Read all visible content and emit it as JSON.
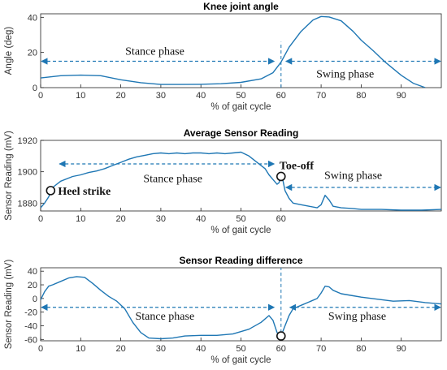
{
  "colors": {
    "series": "#1f77b4",
    "axis": "#222222",
    "text": "#111111"
  },
  "chart_data": [
    {
      "type": "line",
      "title": "Knee joint angle",
      "xlabel": "% of gait cycle",
      "ylabel": "Angle (deg)",
      "xlim": [
        0,
        100
      ],
      "ylim": [
        0,
        42
      ],
      "xticks": [
        0,
        10,
        20,
        30,
        40,
        50,
        60,
        70,
        80,
        90
      ],
      "yticks": [
        0,
        20,
        40
      ],
      "series": [
        {
          "x": [
            0,
            5,
            10,
            15,
            20,
            25,
            30,
            35,
            40,
            45,
            50,
            55,
            58,
            60,
            62,
            65,
            68,
            70,
            72,
            75,
            78,
            80,
            83,
            86,
            90,
            93,
            96
          ],
          "y": [
            5.5,
            6.8,
            7.1,
            6.8,
            4.5,
            2.8,
            1.8,
            1.8,
            1.9,
            2.2,
            3.0,
            5.0,
            8.5,
            14.5,
            23,
            32,
            38.5,
            40.5,
            40.2,
            38,
            32,
            27,
            21,
            14.5,
            7,
            2.5,
            0
          ]
        }
      ],
      "annotations": [
        {
          "type": "vline",
          "x": 60,
          "y1": 0,
          "y2": 26
        },
        {
          "type": "double-arrow",
          "x1": 0,
          "x2": 58.5,
          "y": 15,
          "label": "Stance phase",
          "label_x": 28.5,
          "label_y": 21
        },
        {
          "type": "double-arrow",
          "x1": 61,
          "x2": 100,
          "y": 15,
          "label": "Swing phase",
          "label_x": 76,
          "label_y": 8
        }
      ]
    },
    {
      "type": "line",
      "title": "Average Sensor Reading",
      "xlabel": "% of gait cycle",
      "ylabel": "Sensor Reading (mV)",
      "xlim": [
        0,
        100
      ],
      "ylim": [
        1875,
        1920
      ],
      "xticks": [
        0,
        10,
        20,
        30,
        40,
        50,
        60
      ],
      "yticks": [
        1880,
        1900,
        1920
      ],
      "series": [
        {
          "x": [
            0,
            1,
            2,
            3,
            5,
            8,
            10,
            12,
            14,
            16,
            18,
            20,
            22,
            24,
            26,
            28,
            30,
            32,
            34,
            36,
            38,
            40,
            42,
            44,
            46,
            48,
            50,
            52,
            54,
            56,
            57,
            58,
            59,
            59.5,
            60,
            60.5,
            61,
            62,
            63,
            65,
            67,
            69,
            70,
            71,
            72,
            73,
            75,
            78,
            80,
            85,
            90,
            95,
            100
          ],
          "y": [
            1877,
            1880,
            1884,
            1890,
            1894,
            1897,
            1898,
            1899.5,
            1900.5,
            1902,
            1904,
            1906,
            1908,
            1909.5,
            1910.5,
            1911.5,
            1912,
            1911.5,
            1912,
            1911.5,
            1912,
            1912,
            1911.5,
            1912,
            1911.5,
            1912,
            1912.5,
            1910,
            1906,
            1902,
            1898,
            1895,
            1892,
            1893,
            1897,
            1894,
            1888,
            1883,
            1880,
            1879,
            1878,
            1877,
            1879,
            1885,
            1882,
            1878,
            1877,
            1876.5,
            1876,
            1876,
            1875.5,
            1875.5,
            1876
          ]
        }
      ],
      "markers": [
        {
          "x": 2.5,
          "y": 1888,
          "label": "Heel strike"
        },
        {
          "x": 60,
          "y": 1897,
          "label": "Toe-off"
        }
      ],
      "annotations": [
        {
          "type": "double-arrow",
          "x1": 4.5,
          "x2": 58.5,
          "y": 1905,
          "label": "Stance phase",
          "label_x": 33,
          "label_y": 1896
        },
        {
          "type": "double-arrow",
          "x1": 61,
          "x2": 100,
          "y": 1890,
          "label": "Swing phase",
          "label_x": 78,
          "label_y": 1898
        }
      ]
    },
    {
      "type": "line",
      "title": "Sensor Reading difference",
      "xlabel": "% of gait cycle",
      "ylabel": "Sensor Reading (mV)",
      "xlim": [
        0,
        100
      ],
      "ylim": [
        -62,
        45
      ],
      "xticks": [
        0,
        10,
        20,
        30,
        40,
        50,
        60,
        70,
        80,
        90
      ],
      "yticks": [
        -60,
        -40,
        -20,
        0,
        20,
        40
      ],
      "series": [
        {
          "x": [
            0,
            1,
            2,
            3,
            5,
            7,
            9,
            11,
            13,
            15,
            17,
            19,
            21,
            23,
            25,
            27,
            30,
            33,
            36,
            40,
            44,
            48,
            52,
            55,
            57,
            58,
            59,
            60,
            61,
            62,
            63,
            65,
            67,
            69,
            70,
            71,
            72,
            73,
            75,
            78,
            80,
            84,
            88,
            92,
            96,
            100
          ],
          "y": [
            -2,
            10,
            18,
            20,
            25,
            30,
            32,
            31,
            22,
            12,
            3,
            -4,
            -15,
            -35,
            -50,
            -58,
            -59,
            -58,
            -55,
            -54,
            -54,
            -52,
            -45,
            -35,
            -25,
            -32,
            -50,
            -55,
            -40,
            -25,
            -15,
            -10,
            -5,
            0,
            8,
            18,
            17,
            12,
            7,
            4,
            2,
            -1,
            -4,
            -3,
            -6,
            -8
          ]
        }
      ],
      "markers": [
        {
          "x": 60,
          "y": -55,
          "label": ""
        }
      ],
      "annotations": [
        {
          "type": "vline",
          "x": 60,
          "y1": -50,
          "y2": 45
        },
        {
          "type": "double-arrow",
          "x1": 0,
          "x2": 58.5,
          "y": -13,
          "label": "Stance phase",
          "label_x": 31,
          "label_y": -25
        },
        {
          "type": "double-arrow",
          "x1": 62,
          "x2": 100,
          "y": -13,
          "label": "Swing phase",
          "label_x": 79,
          "label_y": -25
        }
      ]
    }
  ]
}
